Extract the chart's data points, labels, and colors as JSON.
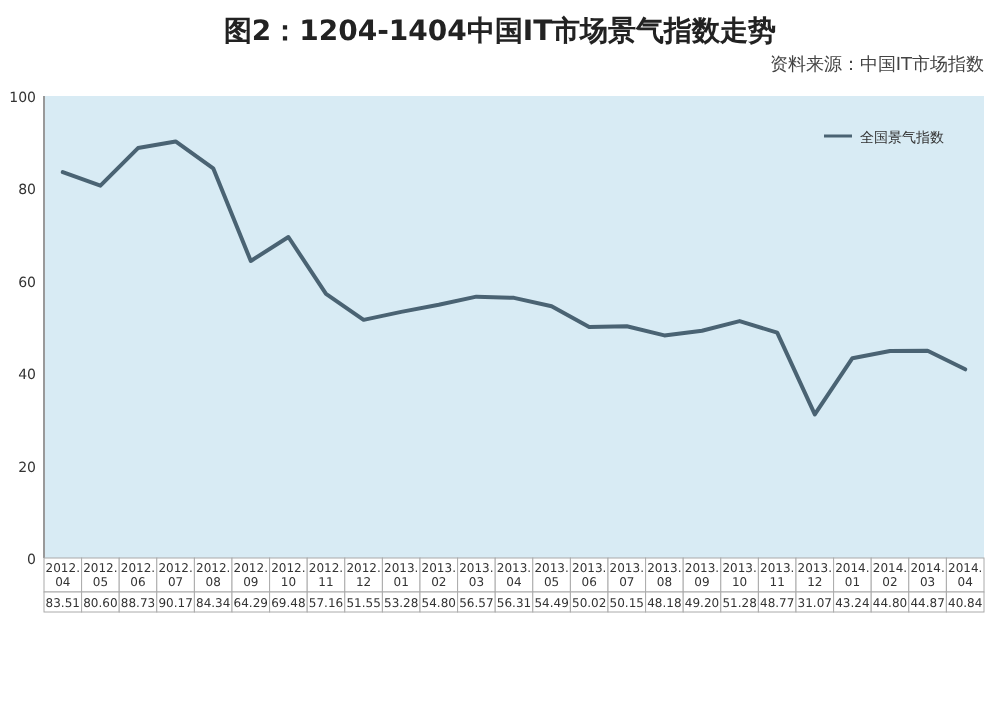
{
  "chart_data": {
    "type": "line",
    "title": "图2：1204-1404中国IT市场景气指数走势",
    "annotations": [
      "资料来源：中国IT市场指数"
    ],
    "categories": [
      "2012.04",
      "2012.05",
      "2012.06",
      "2012.07",
      "2012.08",
      "2012.09",
      "2012.10",
      "2012.11",
      "2012.12",
      "2013.01",
      "2013.02",
      "2013.03",
      "2013.04",
      "2013.05",
      "2013.06",
      "2013.07",
      "2013.08",
      "2013.09",
      "2013.10",
      "2013.11",
      "2013.12",
      "2014.01",
      "2014.02",
      "2014.03",
      "2014.04"
    ],
    "series": [
      {
        "name": "全国景气指数",
        "color": "#4a6373",
        "values": [
          83.51,
          80.6,
          88.73,
          90.17,
          84.34,
          64.29,
          69.48,
          57.16,
          51.55,
          53.28,
          54.8,
          56.57,
          56.31,
          54.49,
          50.02,
          50.15,
          48.18,
          49.2,
          51.28,
          48.77,
          31.07,
          43.24,
          44.8,
          44.87,
          40.84
        ],
        "value_labels": [
          "83.51",
          "80.60",
          "88.73",
          "90.17",
          "84.34",
          "64.29",
          "69.48",
          "57.16",
          "51.55",
          "53.28",
          "54.80",
          "56.57",
          "56.31",
          "54.49",
          "50.02",
          "50.15",
          "48.18",
          "49.20",
          "51.28",
          "48.77",
          "31.07",
          "43.24",
          "44.80",
          "44.87",
          "40.84"
        ]
      }
    ],
    "ylim": [
      0,
      100
    ],
    "yticks": [
      0,
      20,
      40,
      60,
      80,
      100
    ],
    "grid": false,
    "legend": "top right",
    "marker": "none",
    "line_style": "solid"
  }
}
